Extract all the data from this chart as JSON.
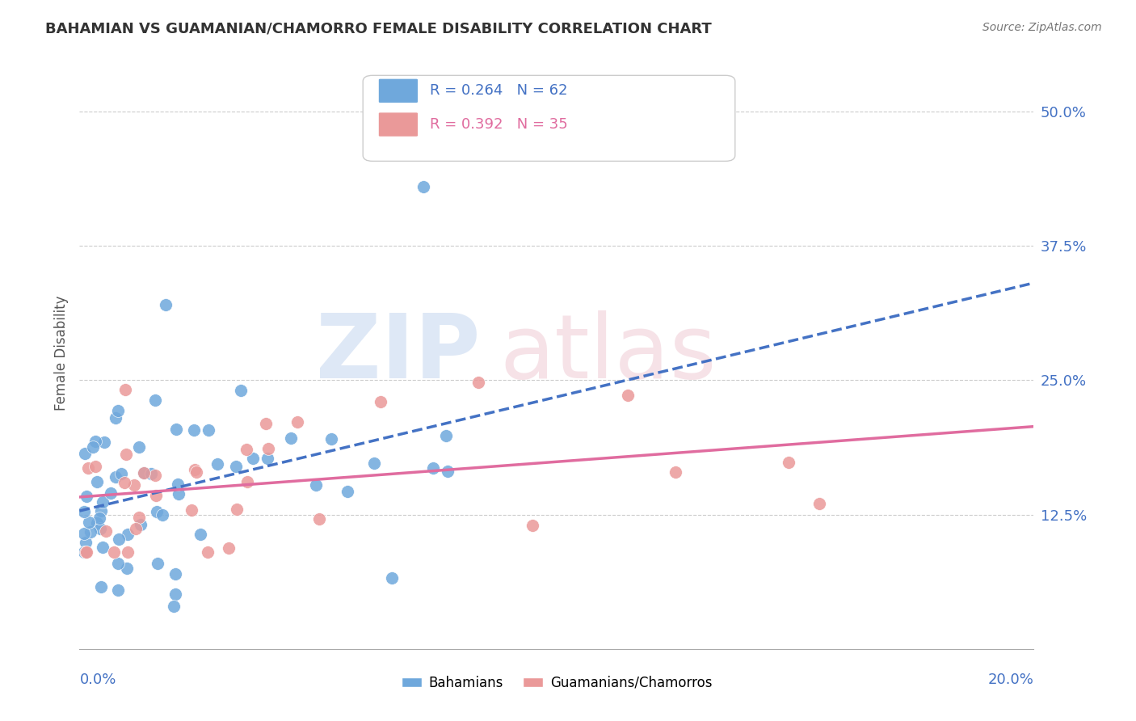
{
  "title": "BAHAMIAN VS GUAMANIAN/CHAMORRO FEMALE DISABILITY CORRELATION CHART",
  "source": "Source: ZipAtlas.com",
  "ylabel": "Female Disability",
  "ytick_values": [
    0.125,
    0.25,
    0.375,
    0.5
  ],
  "xlim": [
    0.0,
    0.2
  ],
  "ylim": [
    0.0,
    0.55
  ],
  "bahamian_color": "#6fa8dc",
  "guamanian_color": "#ea9999",
  "bahamian_line_color": "#4472c4",
  "guamanian_line_color": "#e06c9f",
  "legend_r1_text": "R = 0.264   N = 62",
  "legend_r2_text": "R = 0.392   N = 35",
  "legend_r1_color": "#4472c4",
  "legend_r2_color": "#e06c9f",
  "title_color": "#333333",
  "source_color": "#777777",
  "axis_label_color": "#4472c4",
  "ylabel_color": "#555555",
  "grid_color": "#cccccc",
  "watermark_zip_color": "#c9d9f0",
  "watermark_atlas_color": "#f0d0d8",
  "bahamian_label": "Bahamians",
  "guamanian_label": "Guamanians/Chamorros"
}
